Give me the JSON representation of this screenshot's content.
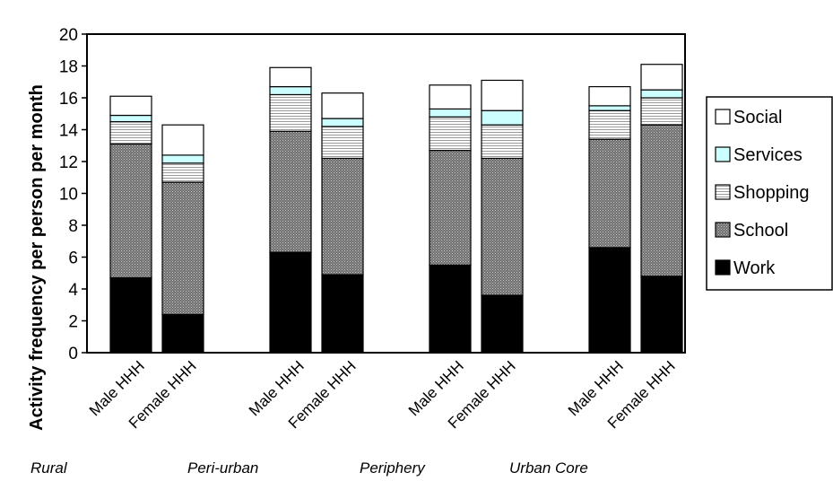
{
  "chart_data": {
    "type": "bar",
    "stacked": true,
    "title": "",
    "ylabel": "Activity frequency per person per month",
    "ylim": [
      0,
      20
    ],
    "yticks": [
      "0",
      "2",
      "4",
      "6",
      "8",
      "10",
      "12",
      "14",
      "16",
      "18",
      "20"
    ],
    "groups": [
      "Rural",
      "Peri-urban",
      "Periphery",
      "Urban Core"
    ],
    "categories": [
      "Male HHH",
      "Female HHH",
      "Male HHH",
      "Female HHH",
      "Male HHH",
      "Female HHH",
      "Male HHH",
      "Female HHH"
    ],
    "series": [
      {
        "name": "Work",
        "color": "#000000",
        "values": [
          4.7,
          2.4,
          6.3,
          4.9,
          5.5,
          3.6,
          6.6,
          4.8
        ]
      },
      {
        "name": "School",
        "color": "#808080",
        "values": [
          8.4,
          8.3,
          7.6,
          7.3,
          7.2,
          8.6,
          6.8,
          9.5
        ]
      },
      {
        "name": "Shopping",
        "color": "#e8e8e8",
        "values": [
          1.4,
          1.2,
          2.3,
          2.0,
          2.1,
          2.1,
          1.8,
          1.7
        ]
      },
      {
        "name": "Services",
        "color": "#ccffff",
        "values": [
          0.4,
          0.5,
          0.5,
          0.5,
          0.5,
          0.9,
          0.3,
          0.5
        ]
      },
      {
        "name": "Social",
        "color": "#ffffff",
        "values": [
          1.2,
          1.9,
          1.2,
          1.6,
          1.5,
          1.9,
          1.2,
          1.6
        ]
      }
    ],
    "legend": {
      "position": "right",
      "order": [
        "Social",
        "Services",
        "Shopping",
        "School",
        "Work"
      ]
    },
    "grid": false
  }
}
